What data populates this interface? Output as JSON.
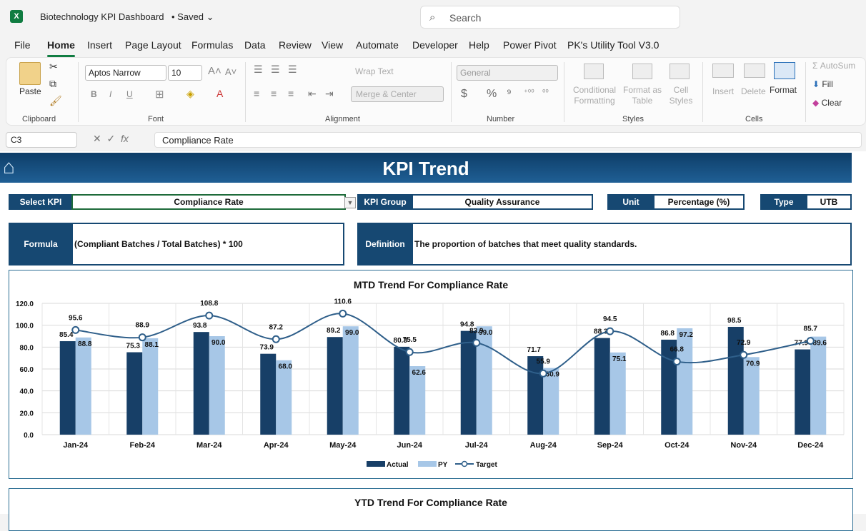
{
  "app": {
    "logo": "X",
    "doc_title": "Biotechnology KPI Dashboard",
    "save_status": "• Saved",
    "search_placeholder": "Search"
  },
  "menu": [
    "File",
    "Home",
    "Insert",
    "Page Layout",
    "Formulas",
    "Data",
    "Review",
    "View",
    "Automate",
    "Developer",
    "Help",
    "Power Pivot",
    "PK's Utility Tool V3.0"
  ],
  "active_menu": "Home",
  "ribbon": {
    "clipboard": {
      "paste": "Paste",
      "label": "Clipboard"
    },
    "font": {
      "name": "Aptos Narrow",
      "size": "10",
      "label": "Font",
      "bold": "B",
      "italic": "I",
      "underline": "U"
    },
    "alignment": {
      "wrap": "Wrap Text",
      "merge": "Merge & Center",
      "label": "Alignment"
    },
    "number": {
      "format": "General",
      "currency": "$",
      "percent": "%",
      "comma": "⁹",
      "label": "Number"
    },
    "styles": {
      "conditional": "Conditional Formatting",
      "format_table": "Format as Table",
      "cell_styles": "Cell Styles",
      "label": "Styles"
    },
    "cells": {
      "insert": "Insert",
      "delete": "Delete",
      "format": "Format",
      "label": "Cells"
    },
    "editing": {
      "autosum": "AutoSum",
      "fill": "Fill",
      "clear": "Clear"
    }
  },
  "formula_bar": {
    "name_box": "C3",
    "fx": "fx",
    "content": "Compliance Rate"
  },
  "dashboard": {
    "title": "KPI Trend",
    "select_kpi_label": "Select KPI",
    "select_kpi_value": "Compliance Rate",
    "kpi_group_label": "KPI Group",
    "kpi_group_value": "Quality Assurance",
    "unit_label": "Unit",
    "unit_value": "Percentage (%)",
    "type_label": "Type",
    "type_value": "UTB",
    "formula_label": "Formula",
    "formula_value": "(Compliant Batches / Total Batches) * 100",
    "definition_label": "Definition",
    "definition_value": "The proportion of batches that meet quality standards.",
    "ytd_title": "YTD Trend For Compliance Rate"
  },
  "chart_data": {
    "type": "bar",
    "title": "MTD Trend For Compliance Rate",
    "categories": [
      "Jan-24",
      "Feb-24",
      "Mar-24",
      "Apr-24",
      "May-24",
      "Jun-24",
      "Jul-24",
      "Aug-24",
      "Sep-24",
      "Oct-24",
      "Nov-24",
      "Dec-24"
    ],
    "series": [
      {
        "name": "Actual",
        "type": "bar",
        "color": "#173f67",
        "values": [
          85.4,
          75.3,
          93.8,
          73.9,
          89.2,
          80.3,
          94.8,
          71.7,
          88.3,
          86.8,
          98.5,
          77.9
        ]
      },
      {
        "name": "PY",
        "type": "bar",
        "color": "#a7c7e7",
        "values": [
          88.8,
          88.1,
          90.0,
          68.0,
          99.0,
          62.6,
          99.0,
          60.9,
          75.1,
          97.2,
          70.9,
          89.6
        ]
      },
      {
        "name": "Target",
        "type": "line",
        "color": "#2f5f8a",
        "values": [
          95.6,
          88.9,
          108.8,
          87.2,
          110.6,
          75.5,
          83.9,
          55.9,
          94.5,
          66.8,
          72.9,
          85.7
        ]
      }
    ],
    "y_ticks": [
      "0.0",
      "20.0",
      "40.0",
      "60.0",
      "80.0",
      "100.0",
      "120.0"
    ],
    "ylim": [
      0,
      120
    ],
    "grid": true,
    "legend": "bottom"
  },
  "colors": {
    "accent": "#107c41",
    "header": "#164872",
    "banner": "#1f5f95"
  }
}
